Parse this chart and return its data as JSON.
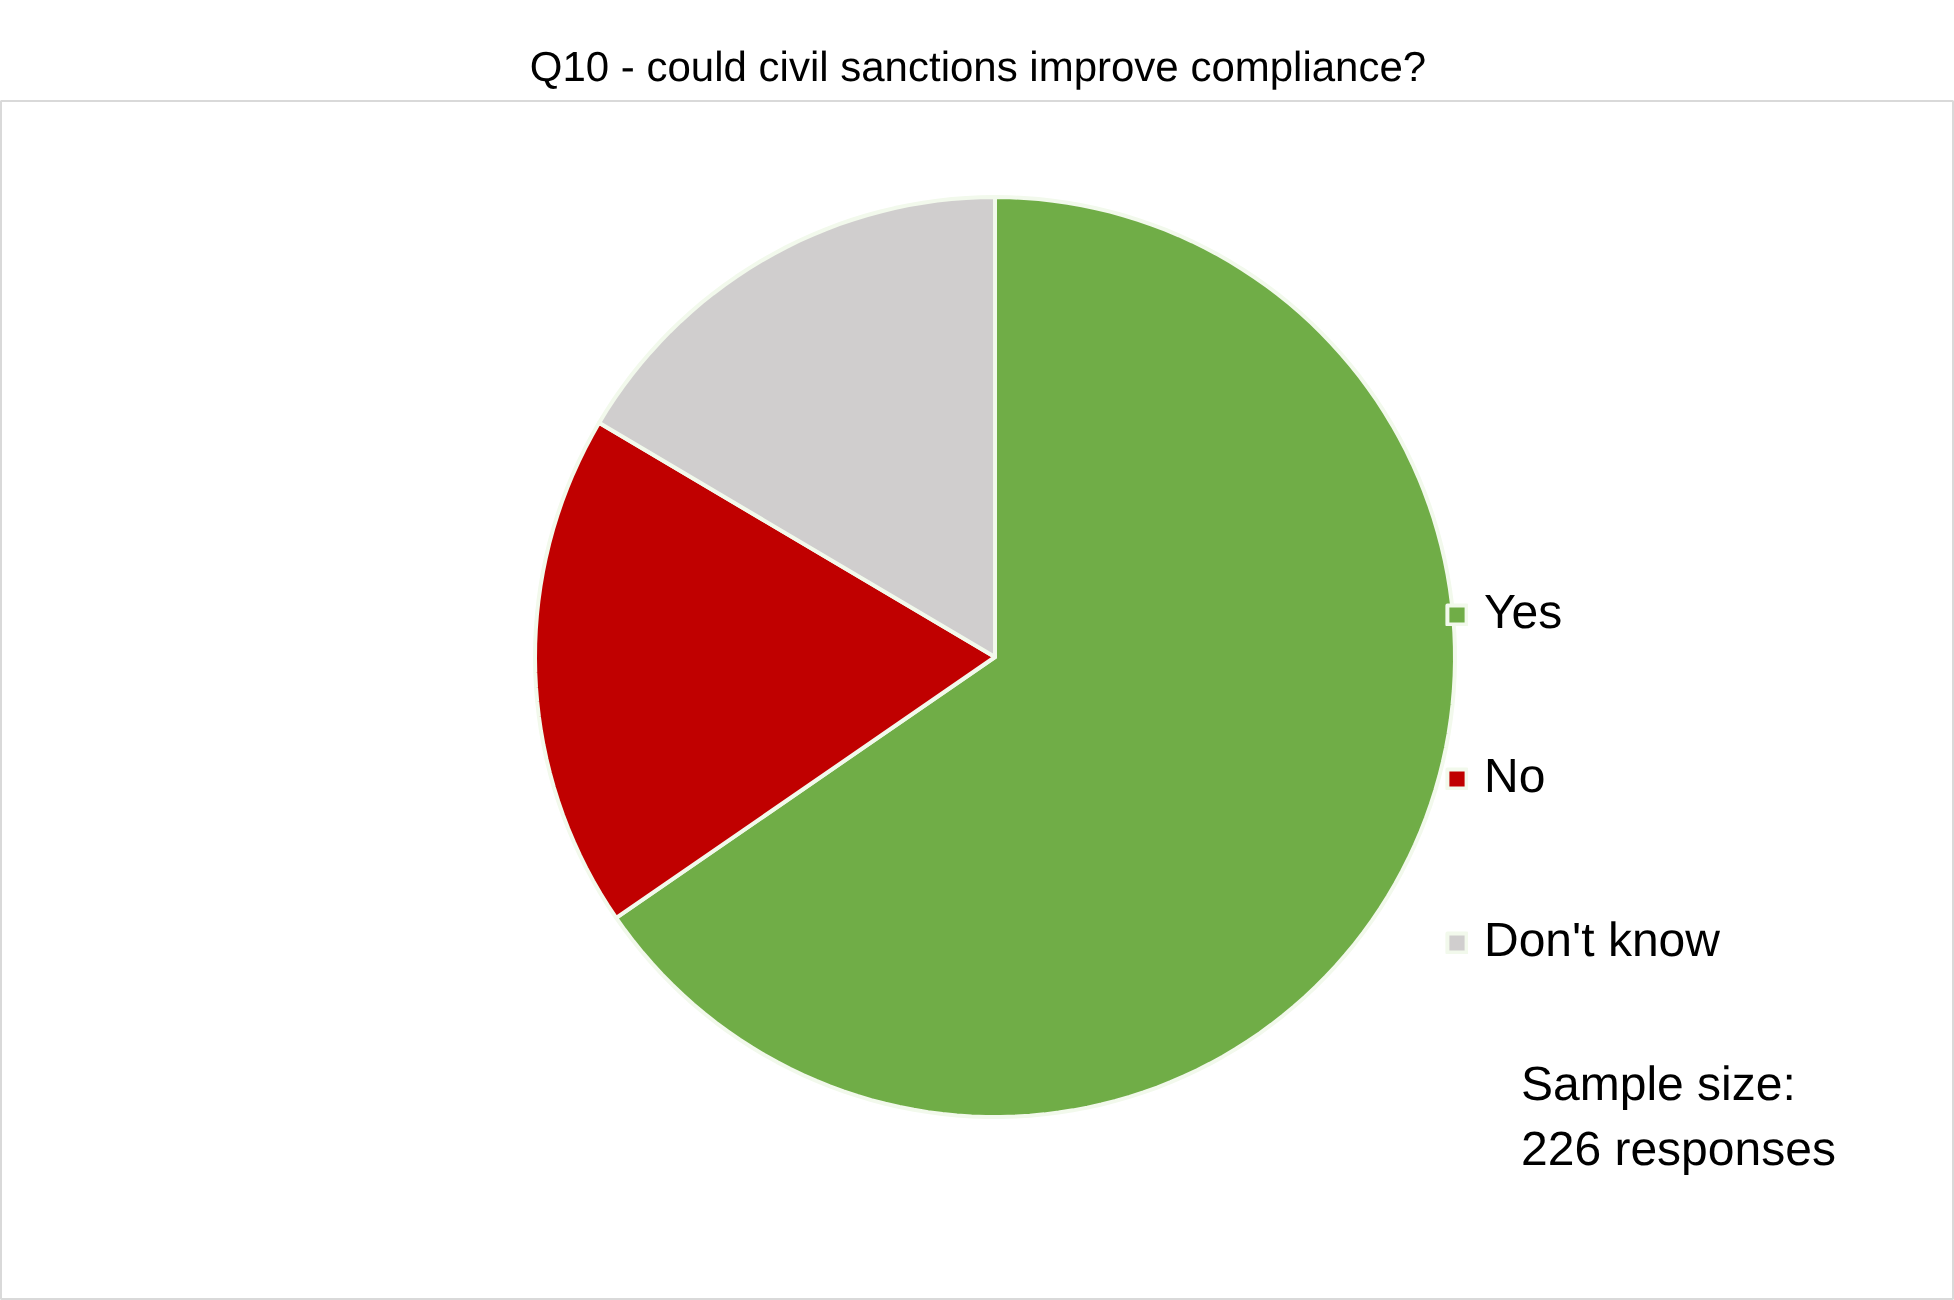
{
  "chart_data": {
    "type": "pie",
    "title": "Q10 - could civil sanctions improve compliance?",
    "categories": [
      "Yes",
      "No",
      "Don't know"
    ],
    "values": [
      65.4,
      18.1,
      16.5
    ],
    "colors": [
      "#70ad47",
      "#c00000",
      "#d0cece"
    ],
    "legend": "right",
    "annotations": [
      "Sample size:\n226 responses"
    ]
  }
}
